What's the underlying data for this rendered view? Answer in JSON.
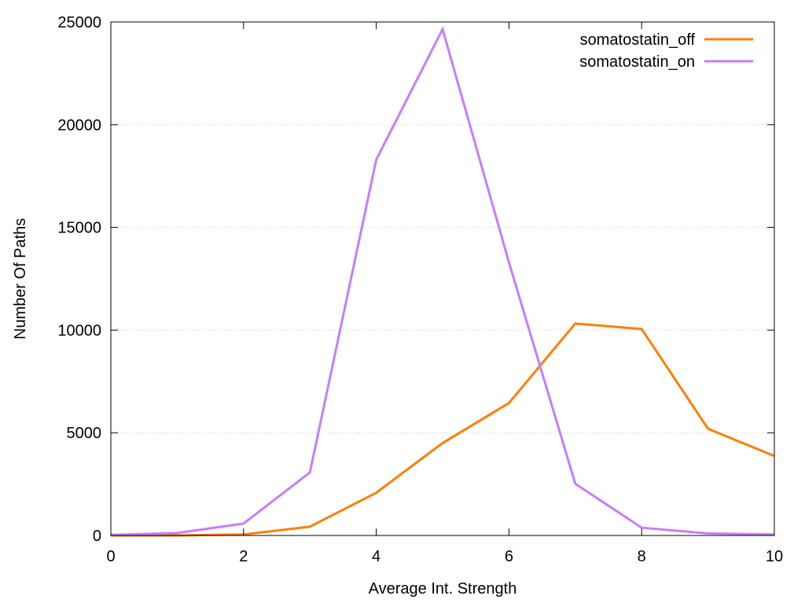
{
  "chart_data": {
    "type": "line",
    "xlabel": "Average Int. Strength",
    "ylabel": "Number Of Paths",
    "xlim": [
      0,
      10
    ],
    "ylim": [
      0,
      25000
    ],
    "xticks": [
      0,
      2,
      4,
      6,
      8,
      10
    ],
    "yticks": [
      0,
      5000,
      10000,
      15000,
      20000,
      25000
    ],
    "grid": "horizontal-dotted",
    "legend_position": "top-right",
    "series": [
      {
        "name": "somatostatin_off",
        "color": "#ff7f00",
        "x": [
          0,
          1,
          2,
          3,
          4,
          5,
          6,
          7,
          8,
          9,
          10
        ],
        "y": [
          0,
          0,
          50,
          430,
          2080,
          4500,
          6450,
          10320,
          10050,
          5200,
          3870
        ]
      },
      {
        "name": "somatostatin_on",
        "color": "#c77cff",
        "x": [
          0,
          1,
          2,
          3,
          4,
          5,
          6,
          7,
          8,
          9,
          10
        ],
        "y": [
          30,
          120,
          580,
          3070,
          18300,
          24650,
          13300,
          2520,
          380,
          100,
          50
        ]
      }
    ]
  }
}
